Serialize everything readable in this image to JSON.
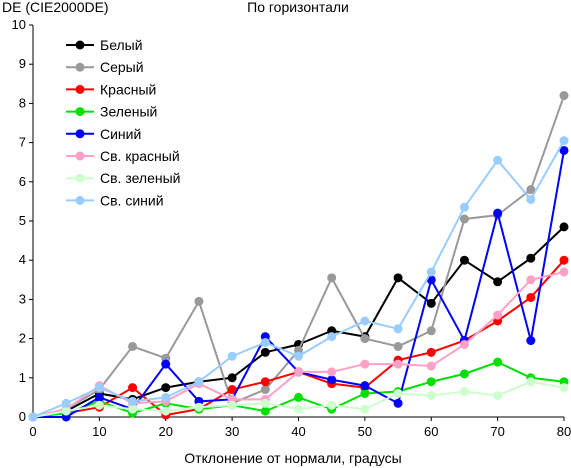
{
  "chart_data": {
    "type": "line",
    "title": "По горизонтали",
    "xlabel": "Отклонение от нормали, градусы",
    "ylabel": "DE (CIE2000DE)",
    "xlim": [
      0,
      80
    ],
    "ylim": [
      0,
      10
    ],
    "x_ticks": [
      "0",
      "10",
      "20",
      "30",
      "40",
      "50",
      "60",
      "70",
      "80"
    ],
    "y_ticks": [
      "0",
      "1",
      "2",
      "3",
      "4",
      "5",
      "6",
      "7",
      "8",
      "9",
      "10"
    ],
    "grid": false,
    "legend_position": "top-left",
    "series": [
      {
        "name": "Белый",
        "color": "#000000",
        "points": [
          [
            0,
            0
          ],
          [
            5,
            0.15
          ],
          [
            10,
            0.6
          ],
          [
            15,
            0.45
          ],
          [
            20,
            0.75
          ],
          [
            25,
            0.9
          ],
          [
            30,
            1.0
          ],
          [
            35,
            1.65
          ],
          [
            40,
            1.85
          ],
          [
            45,
            2.2
          ],
          [
            50,
            2.05
          ],
          [
            55,
            3.55
          ],
          [
            60,
            2.9
          ],
          [
            65,
            4.0
          ],
          [
            70,
            3.45
          ],
          [
            75,
            4.05
          ],
          [
            80,
            4.85
          ]
        ]
      },
      {
        "name": "Серый",
        "color": "#999999",
        "points": [
          [
            0,
            0
          ],
          [
            5,
            0.2
          ],
          [
            10,
            0.7
          ],
          [
            15,
            1.8
          ],
          [
            20,
            1.5
          ],
          [
            25,
            2.95
          ],
          [
            30,
            0.35
          ],
          [
            35,
            0.7
          ],
          [
            40,
            1.7
          ],
          [
            45,
            3.55
          ],
          [
            50,
            2.0
          ],
          [
            55,
            1.8
          ],
          [
            60,
            2.2
          ],
          [
            65,
            5.05
          ],
          [
            70,
            5.15
          ],
          [
            75,
            5.8
          ],
          [
            80,
            8.2
          ]
        ]
      },
      {
        "name": "Красный",
        "color": "#ff0000",
        "points": [
          [
            0,
            0
          ],
          [
            5,
            0.1
          ],
          [
            10,
            0.25
          ],
          [
            15,
            0.75
          ],
          [
            20,
            0.05
          ],
          [
            25,
            0.2
          ],
          [
            30,
            0.7
          ],
          [
            35,
            0.9
          ],
          [
            40,
            1.15
          ],
          [
            45,
            0.85
          ],
          [
            50,
            0.75
          ],
          [
            55,
            1.45
          ],
          [
            60,
            1.65
          ],
          [
            65,
            1.95
          ],
          [
            70,
            2.45
          ],
          [
            75,
            3.05
          ],
          [
            80,
            4.0
          ]
        ]
      },
      {
        "name": "Зеленый",
        "color": "#00e000",
        "points": [
          [
            0,
            0
          ],
          [
            5,
            0.1
          ],
          [
            10,
            0.4
          ],
          [
            15,
            0.1
          ],
          [
            20,
            0.35
          ],
          [
            25,
            0.2
          ],
          [
            30,
            0.3
          ],
          [
            35,
            0.15
          ],
          [
            40,
            0.5
          ],
          [
            45,
            0.2
          ],
          [
            50,
            0.6
          ],
          [
            55,
            0.65
          ],
          [
            60,
            0.9
          ],
          [
            65,
            1.1
          ],
          [
            70,
            1.4
          ],
          [
            75,
            1.0
          ],
          [
            80,
            0.9
          ]
        ]
      },
      {
        "name": "Синий",
        "color": "#0000ff",
        "points": [
          [
            0,
            0
          ],
          [
            5,
            0.0
          ],
          [
            10,
            0.5
          ],
          [
            15,
            0.2
          ],
          [
            20,
            1.35
          ],
          [
            25,
            0.4
          ],
          [
            30,
            0.45
          ],
          [
            35,
            2.05
          ],
          [
            40,
            1.15
          ],
          [
            45,
            0.95
          ],
          [
            50,
            0.8
          ],
          [
            55,
            0.35
          ],
          [
            60,
            3.5
          ],
          [
            65,
            1.95
          ],
          [
            70,
            5.2
          ],
          [
            75,
            1.95
          ],
          [
            80,
            6.8
          ]
        ]
      },
      {
        "name": "Св. красный",
        "color": "#ffa0c8",
        "points": [
          [
            0,
            0
          ],
          [
            5,
            0.2
          ],
          [
            10,
            0.8
          ],
          [
            15,
            0.35
          ],
          [
            20,
            0.4
          ],
          [
            25,
            0.85
          ],
          [
            30,
            0.45
          ],
          [
            35,
            0.45
          ],
          [
            40,
            1.15
          ],
          [
            45,
            1.15
          ],
          [
            50,
            1.35
          ],
          [
            55,
            1.35
          ],
          [
            60,
            1.3
          ],
          [
            65,
            1.85
          ],
          [
            70,
            2.6
          ],
          [
            75,
            3.5
          ],
          [
            80,
            3.7
          ]
        ]
      },
      {
        "name": "Св. зеленый",
        "color": "#ccffcc",
        "points": [
          [
            0,
            0
          ],
          [
            5,
            0.15
          ],
          [
            10,
            0.3
          ],
          [
            15,
            0.2
          ],
          [
            20,
            0.15
          ],
          [
            25,
            0.25
          ],
          [
            30,
            0.3
          ],
          [
            35,
            0.35
          ],
          [
            40,
            0.2
          ],
          [
            45,
            0.3
          ],
          [
            50,
            0.2
          ],
          [
            55,
            0.6
          ],
          [
            60,
            0.55
          ],
          [
            65,
            0.65
          ],
          [
            70,
            0.55
          ],
          [
            75,
            0.9
          ],
          [
            80,
            0.75
          ]
        ]
      },
      {
        "name": "Св. синий",
        "color": "#99ccff",
        "points": [
          [
            0,
            0
          ],
          [
            5,
            0.35
          ],
          [
            10,
            0.75
          ],
          [
            15,
            0.4
          ],
          [
            20,
            0.5
          ],
          [
            25,
            0.9
          ],
          [
            30,
            1.55
          ],
          [
            35,
            1.9
          ],
          [
            40,
            1.55
          ],
          [
            45,
            2.05
          ],
          [
            50,
            2.45
          ],
          [
            55,
            2.25
          ],
          [
            60,
            3.7
          ],
          [
            65,
            5.35
          ],
          [
            70,
            6.55
          ],
          [
            75,
            5.55
          ],
          [
            80,
            7.05
          ]
        ]
      }
    ]
  }
}
